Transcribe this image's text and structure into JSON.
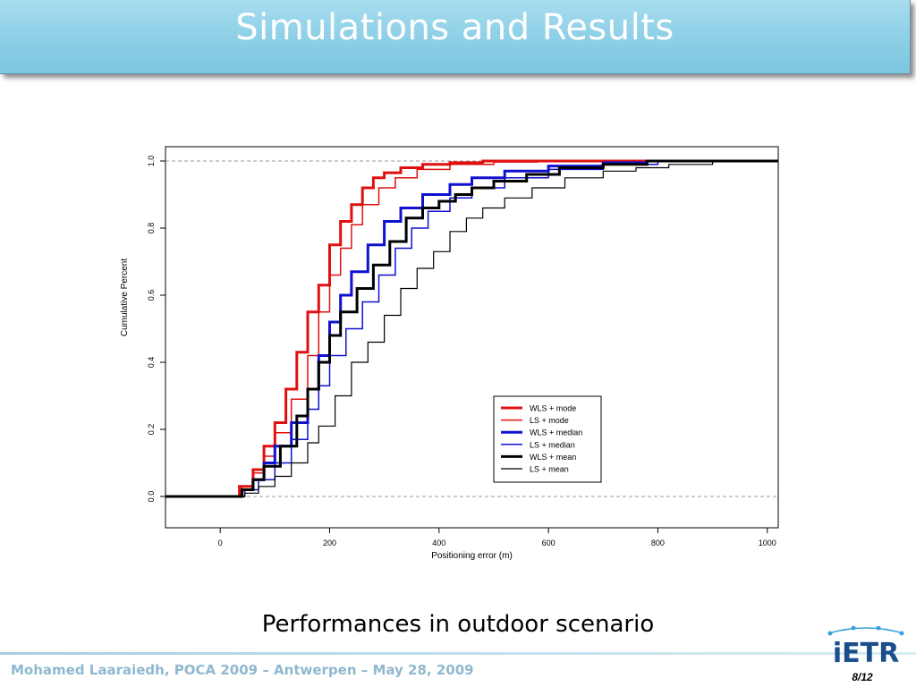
{
  "slide": {
    "title": "Simulations and Results",
    "caption": "Performances in outdoor scenario",
    "footer": "Mohamed Laaraiedh, POCA 2009 – Antwerpen – May 28, 2009",
    "page": "8/12",
    "logo_text": "iETR"
  },
  "colors": {
    "title_bg": "#8ccfe6",
    "footer_text": "#8fb8cf",
    "red": "#e01010",
    "blue": "#1010d0",
    "black": "#000000"
  },
  "chart_data": {
    "type": "line",
    "title": "",
    "xlabel": "Positioning error (m)",
    "ylabel": "Cumulative Percent",
    "xlim": [
      -100,
      1020
    ],
    "ylim": [
      0,
      1
    ],
    "x_ticks": [
      "0",
      "200",
      "400",
      "600",
      "800",
      "1000"
    ],
    "y_ticks": [
      "0.0",
      "0.2",
      "0.4",
      "0.6",
      "0.8",
      "1.0"
    ],
    "reference_lines": [
      0,
      1
    ],
    "legend_position": "bottom-right",
    "series": [
      {
        "name": "WLS + mode",
        "color": "#e01010",
        "width": 3,
        "points": [
          [
            -100,
            0
          ],
          [
            20,
            0
          ],
          [
            35,
            0.03
          ],
          [
            60,
            0.08
          ],
          [
            80,
            0.15
          ],
          [
            100,
            0.22
          ],
          [
            120,
            0.32
          ],
          [
            140,
            0.43
          ],
          [
            160,
            0.55
          ],
          [
            180,
            0.63
          ],
          [
            200,
            0.75
          ],
          [
            220,
            0.82
          ],
          [
            240,
            0.87
          ],
          [
            260,
            0.92
          ],
          [
            280,
            0.95
          ],
          [
            300,
            0.965
          ],
          [
            330,
            0.98
          ],
          [
            370,
            0.99
          ],
          [
            420,
            0.995
          ],
          [
            480,
            1.0
          ],
          [
            1020,
            1.0
          ]
        ]
      },
      {
        "name": "LS + mode",
        "color": "#e01010",
        "width": 1.5,
        "points": [
          [
            -100,
            0
          ],
          [
            20,
            0
          ],
          [
            40,
            0.03
          ],
          [
            60,
            0.07
          ],
          [
            80,
            0.12
          ],
          [
            100,
            0.19
          ],
          [
            130,
            0.29
          ],
          [
            160,
            0.42
          ],
          [
            180,
            0.55
          ],
          [
            200,
            0.66
          ],
          [
            220,
            0.74
          ],
          [
            240,
            0.81
          ],
          [
            260,
            0.87
          ],
          [
            290,
            0.92
          ],
          [
            320,
            0.95
          ],
          [
            360,
            0.975
          ],
          [
            420,
            0.99
          ],
          [
            500,
            0.997
          ],
          [
            580,
            1.0
          ],
          [
            1020,
            1.0
          ]
        ]
      },
      {
        "name": "WLS + median",
        "color": "#1010d0",
        "width": 3,
        "points": [
          [
            -100,
            0
          ],
          [
            20,
            0
          ],
          [
            40,
            0.02
          ],
          [
            60,
            0.05
          ],
          [
            80,
            0.1
          ],
          [
            100,
            0.15
          ],
          [
            130,
            0.22
          ],
          [
            160,
            0.32
          ],
          [
            180,
            0.42
          ],
          [
            200,
            0.52
          ],
          [
            220,
            0.6
          ],
          [
            240,
            0.67
          ],
          [
            270,
            0.75
          ],
          [
            300,
            0.82
          ],
          [
            330,
            0.86
          ],
          [
            370,
            0.9
          ],
          [
            420,
            0.93
          ],
          [
            460,
            0.95
          ],
          [
            520,
            0.97
          ],
          [
            600,
            0.985
          ],
          [
            700,
            0.995
          ],
          [
            780,
            1.0
          ],
          [
            1020,
            1.0
          ]
        ]
      },
      {
        "name": "LS + median",
        "color": "#1010d0",
        "width": 1.5,
        "points": [
          [
            -100,
            0
          ],
          [
            20,
            0
          ],
          [
            45,
            0.02
          ],
          [
            70,
            0.05
          ],
          [
            100,
            0.1
          ],
          [
            130,
            0.17
          ],
          [
            160,
            0.26
          ],
          [
            180,
            0.33
          ],
          [
            200,
            0.42
          ],
          [
            230,
            0.5
          ],
          [
            260,
            0.58
          ],
          [
            290,
            0.66
          ],
          [
            320,
            0.74
          ],
          [
            350,
            0.8
          ],
          [
            380,
            0.85
          ],
          [
            420,
            0.89
          ],
          [
            460,
            0.92
          ],
          [
            520,
            0.95
          ],
          [
            600,
            0.975
          ],
          [
            700,
            0.99
          ],
          [
            800,
            1.0
          ],
          [
            1020,
            1.0
          ]
        ]
      },
      {
        "name": "WLS + mean",
        "color": "#000000",
        "width": 3,
        "points": [
          [
            -100,
            0
          ],
          [
            20,
            0
          ],
          [
            40,
            0.02
          ],
          [
            60,
            0.05
          ],
          [
            80,
            0.09
          ],
          [
            110,
            0.15
          ],
          [
            140,
            0.24
          ],
          [
            160,
            0.32
          ],
          [
            180,
            0.4
          ],
          [
            200,
            0.48
          ],
          [
            220,
            0.55
          ],
          [
            250,
            0.62
          ],
          [
            280,
            0.69
          ],
          [
            310,
            0.76
          ],
          [
            340,
            0.83
          ],
          [
            370,
            0.86
          ],
          [
            400,
            0.88
          ],
          [
            430,
            0.9
          ],
          [
            460,
            0.92
          ],
          [
            500,
            0.94
          ],
          [
            560,
            0.96
          ],
          [
            620,
            0.98
          ],
          [
            700,
            0.99
          ],
          [
            780,
            1.0
          ],
          [
            1020,
            1.0
          ]
        ]
      },
      {
        "name": "LS + mean",
        "color": "#000000",
        "width": 1.2,
        "points": [
          [
            -100,
            0
          ],
          [
            20,
            0
          ],
          [
            45,
            0.01
          ],
          [
            70,
            0.03
          ],
          [
            100,
            0.06
          ],
          [
            130,
            0.1
          ],
          [
            160,
            0.16
          ],
          [
            180,
            0.21
          ],
          [
            210,
            0.3
          ],
          [
            240,
            0.4
          ],
          [
            270,
            0.46
          ],
          [
            300,
            0.54
          ],
          [
            330,
            0.62
          ],
          [
            360,
            0.68
          ],
          [
            390,
            0.73
          ],
          [
            420,
            0.79
          ],
          [
            450,
            0.83
          ],
          [
            480,
            0.86
          ],
          [
            520,
            0.89
          ],
          [
            570,
            0.92
          ],
          [
            630,
            0.95
          ],
          [
            700,
            0.97
          ],
          [
            760,
            0.98
          ],
          [
            820,
            0.99
          ],
          [
            900,
            1.0
          ],
          [
            1020,
            1.0
          ]
        ]
      }
    ]
  }
}
